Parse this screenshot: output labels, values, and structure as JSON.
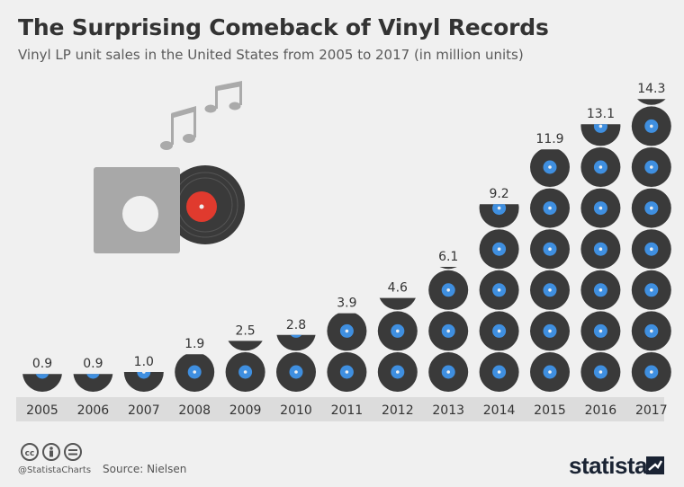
{
  "header": {
    "title": "The Surprising Comeback of Vinyl Records",
    "subtitle": "Vinyl LP unit sales in the United States from 2005 to 2017 (in million units)"
  },
  "footer": {
    "handle": "@StatistaCharts",
    "source": "Source: Nielsen",
    "brand": "statista"
  },
  "colors": {
    "background": "#f0f0f0",
    "record": "#3a3a3a",
    "label": "#3f8fe0",
    "axis_band": "#dcdcdc",
    "illustration_sleeve": "#a8a8a8",
    "illustration_label": "#e03a2e"
  },
  "icons": [
    "creative-commons-icon",
    "attribution-icon",
    "no-derivatives-icon",
    "statista-logo-icon",
    "music-note-icon",
    "vinyl-record-icon"
  ],
  "chart_data": {
    "type": "bar",
    "categories": [
      "2005",
      "2006",
      "2007",
      "2008",
      "2009",
      "2010",
      "2011",
      "2012",
      "2013",
      "2014",
      "2015",
      "2016",
      "2017"
    ],
    "values": [
      0.9,
      0.9,
      1.0,
      1.9,
      2.5,
      2.8,
      3.9,
      4.6,
      6.1,
      9.2,
      11.9,
      13.1,
      14.3
    ],
    "value_labels": [
      "0.9",
      "0.9",
      "1.0",
      "1.9",
      "2.5",
      "2.8",
      "3.9",
      "4.6",
      "6.1",
      "9.2",
      "11.9",
      "13.1",
      "14.3"
    ],
    "unit": "million units",
    "ylim": [
      0,
      15
    ],
    "grid": false,
    "legend": "none"
  }
}
